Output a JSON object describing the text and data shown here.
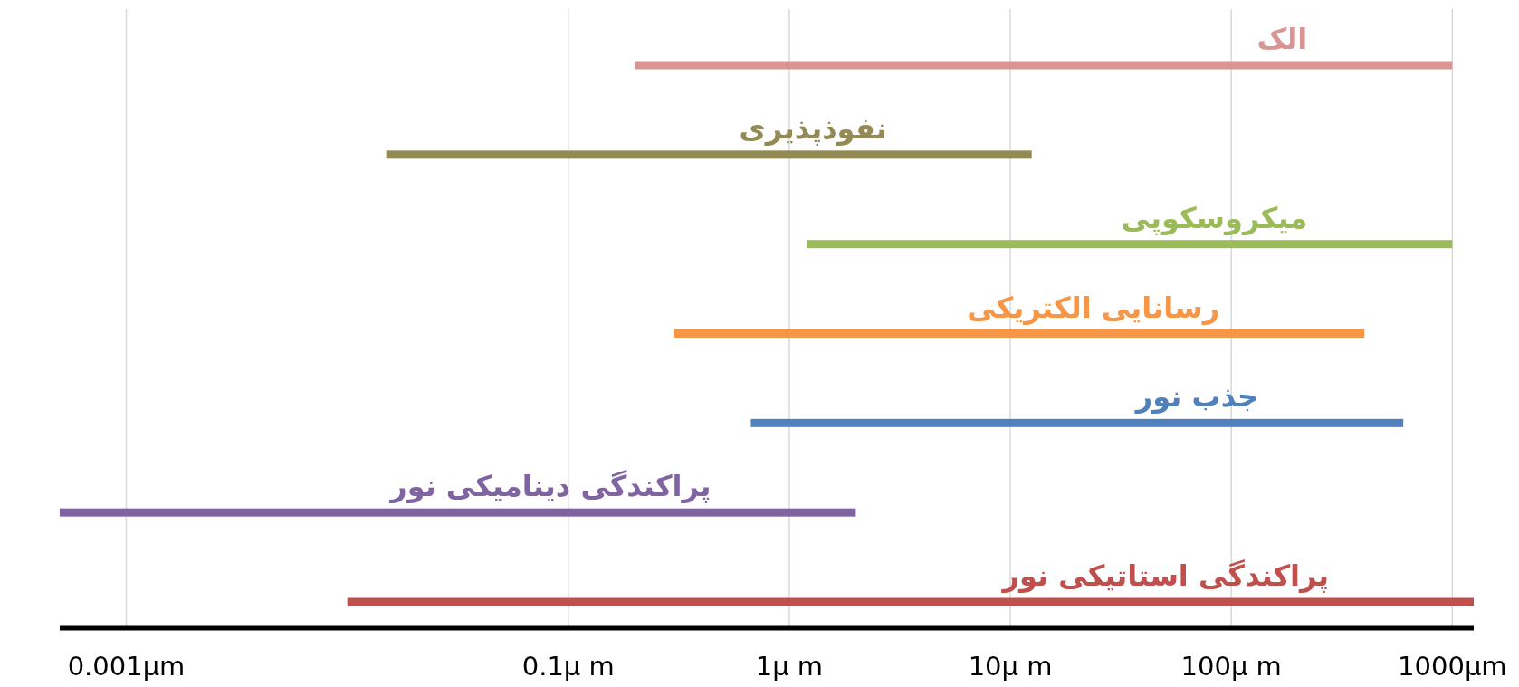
{
  "chart_data": {
    "type": "bar",
    "orientation": "horizontal",
    "log": "x",
    "grid": "x",
    "categories": [
      "الک",
      "نفوذپذیری",
      "میکروسکوپی",
      "رسانایی الکتریکی",
      "جذب نور",
      "پراکندگی دینامیکی نور",
      "پراکندگی استاتیکی نور"
    ],
    "base": [
      0.2,
      0.015,
      1.2,
      0.3,
      0.67,
      0.0005,
      0.01
    ],
    "values": [
      999.8,
      12.485,
      998.8,
      399.7,
      599.33,
      1.9995,
      1249.99
    ],
    "colors": [
      "#d99594",
      "#948a54",
      "#9bbb59",
      "#f79646",
      "#4f81bd",
      "#8064a2",
      "#c0504d"
    ],
    "xlim": [
      0.0005,
      1250
    ],
    "xticks": [
      {
        "value": 0.001,
        "label": "0.001µm"
      },
      {
        "value": 0.1,
        "label": "0.1µ m"
      },
      {
        "value": 1,
        "label": "1µ m"
      },
      {
        "value": 10,
        "label": "10µ m"
      },
      {
        "value": 100,
        "label": "100µ m"
      },
      {
        "value": 1000,
        "label": "1000µm"
      }
    ]
  }
}
